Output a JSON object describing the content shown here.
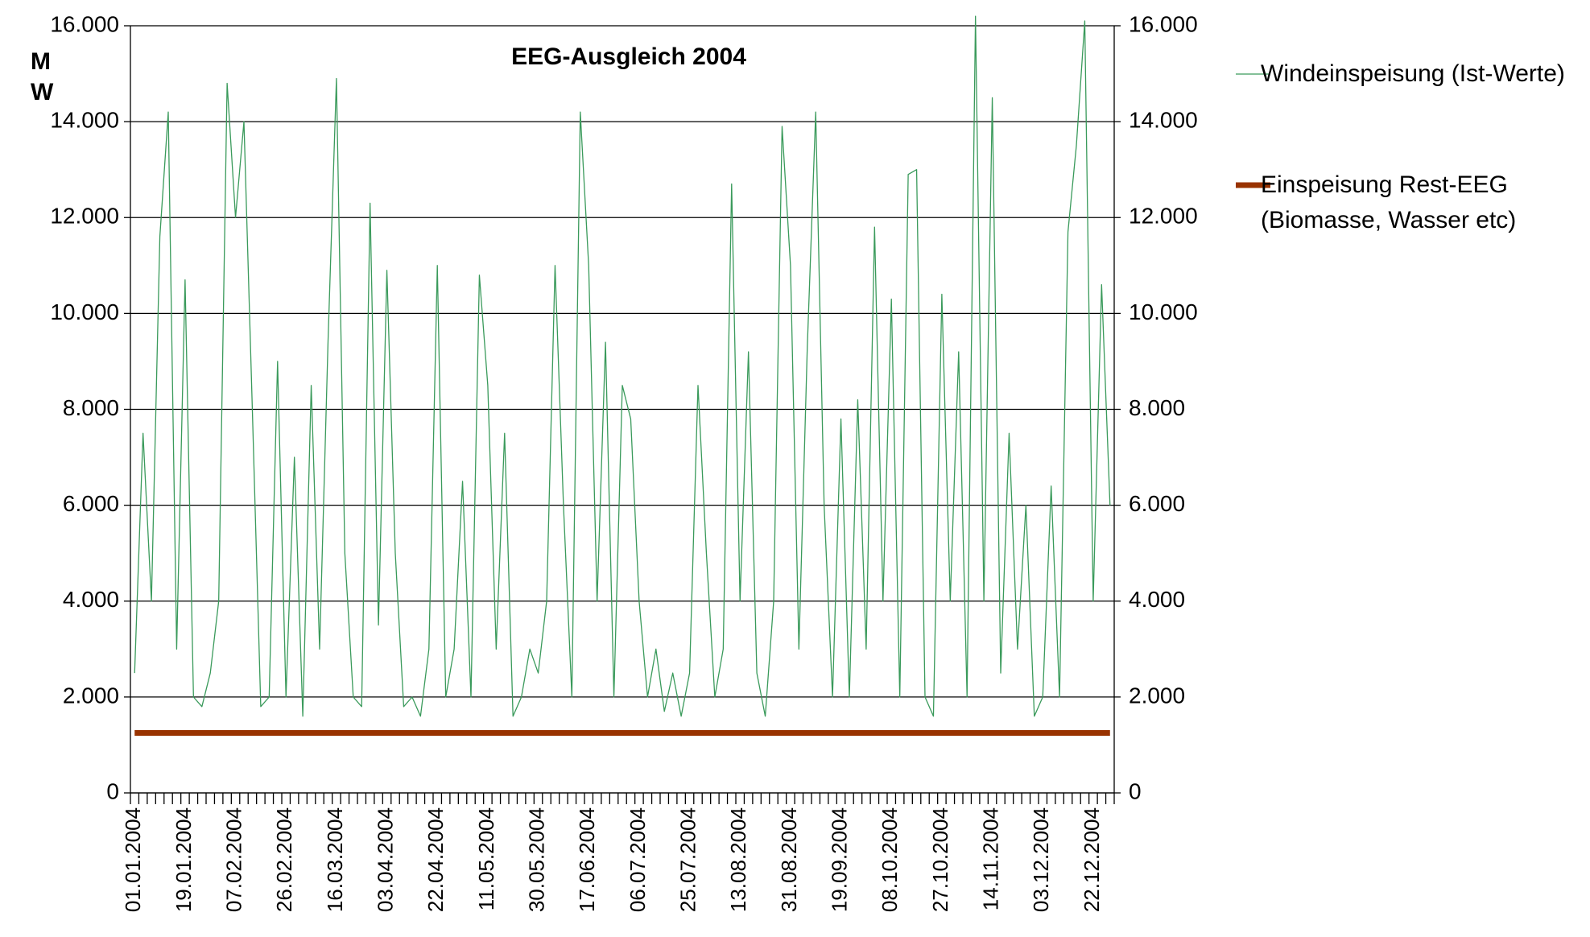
{
  "chart_data": {
    "type": "line",
    "title": "EEG-Ausgleich 2004",
    "ylabel": "MW",
    "categories": [
      "01.01.2004",
      null,
      null,
      null,
      null,
      null,
      "19.01.2004",
      null,
      null,
      null,
      null,
      null,
      "07.02.2004",
      null,
      null,
      null,
      null,
      null,
      "26.02.2004",
      null,
      null,
      null,
      null,
      null,
      "16.03.2004",
      null,
      null,
      null,
      null,
      null,
      "03.04.2004",
      null,
      null,
      null,
      null,
      null,
      "22.04.2004",
      null,
      null,
      null,
      null,
      null,
      "11.05.2004",
      null,
      null,
      null,
      null,
      null,
      "30.05.2004",
      null,
      null,
      null,
      null,
      null,
      "17.06.2004",
      null,
      null,
      null,
      null,
      null,
      "06.07.2004",
      null,
      null,
      null,
      null,
      null,
      "25.07.2004",
      null,
      null,
      null,
      null,
      null,
      "13.08.2004",
      null,
      null,
      null,
      null,
      null,
      "31.08.2004",
      null,
      null,
      null,
      null,
      null,
      "19.09.2004",
      null,
      null,
      null,
      null,
      null,
      "08.10.2004",
      null,
      null,
      null,
      null,
      null,
      "27.10.2004",
      null,
      null,
      null,
      null,
      null,
      "14.11.2004",
      null,
      null,
      null,
      null,
      null,
      "03.12.2004",
      null,
      null,
      null,
      null,
      null,
      "22.12.2004",
      null,
      null
    ],
    "series": [
      {
        "name": "Windeinspeisung (Ist-Werte)",
        "color": "#3a9a5b",
        "width": 1.3,
        "values": [
          2500,
          7500,
          4000,
          11600,
          14200,
          3000,
          10700,
          2000,
          1800,
          2500,
          4000,
          14800,
          12000,
          14000,
          8000,
          1800,
          2000,
          9000,
          2000,
          7000,
          1600,
          8500,
          3000,
          9400,
          14900,
          5000,
          2000,
          1800,
          12300,
          3500,
          10900,
          5000,
          1800,
          2000,
          1600,
          3000,
          11000,
          2000,
          3000,
          6500,
          2000,
          10800,
          8500,
          3000,
          7500,
          1600,
          2000,
          3000,
          2500,
          4000,
          11000,
          6000,
          2000,
          14200,
          11000,
          4000,
          9400,
          2000,
          8500,
          7800,
          4000,
          2000,
          3000,
          1700,
          2500,
          1600,
          2500,
          8500,
          5000,
          2000,
          3000,
          12700,
          4000,
          9200,
          2500,
          1600,
          4000,
          13900,
          11000,
          3000,
          9300,
          14200,
          6000,
          2000,
          7800,
          2000,
          8200,
          3000,
          11800,
          4000,
          10300,
          2000,
          12900,
          13000,
          2000,
          1600,
          10400,
          4000,
          9200,
          2000,
          16200,
          4000,
          14500,
          2500,
          7500,
          3000,
          6000,
          1600,
          2000,
          6400,
          2000,
          11700,
          13500,
          16100,
          4000,
          10600,
          6000
        ]
      },
      {
        "name": "Einspeisung Rest-EEG (Biomasse, Wasser etc)",
        "color": "#993300",
        "width": 7,
        "values": [
          1250,
          1250,
          1250,
          1250,
          1250,
          1250,
          1250,
          1250,
          1250,
          1250,
          1250,
          1250,
          1250,
          1250,
          1250,
          1250,
          1250,
          1250,
          1250,
          1250,
          1250,
          1250,
          1250,
          1250,
          1250,
          1250,
          1250,
          1250,
          1250,
          1250,
          1250,
          1250,
          1250,
          1250,
          1250,
          1250,
          1250,
          1250,
          1250,
          1250,
          1250,
          1250,
          1250,
          1250,
          1250,
          1250,
          1250,
          1250,
          1250,
          1250,
          1250,
          1250,
          1250,
          1250,
          1250,
          1250,
          1250,
          1250,
          1250,
          1250,
          1250,
          1250,
          1250,
          1250,
          1250,
          1250,
          1250,
          1250,
          1250,
          1250,
          1250,
          1250,
          1250,
          1250,
          1250,
          1250,
          1250,
          1250,
          1250,
          1250,
          1250,
          1250,
          1250,
          1250,
          1250,
          1250,
          1250,
          1250,
          1250,
          1250,
          1250,
          1250,
          1250,
          1250,
          1250,
          1250,
          1250,
          1250,
          1250,
          1250,
          1250,
          1250,
          1250,
          1250,
          1250,
          1250,
          1250,
          1250,
          1250,
          1250,
          1250,
          1250,
          1250,
          1250,
          1250,
          1250,
          1250
        ]
      }
    ],
    "ylim": [
      0,
      16000
    ],
    "yticks": [
      0,
      {
        "value": 2000,
        "label": "2.000"
      },
      {
        "value": 4000,
        "label": "4.000"
      },
      {
        "value": 6000,
        "label": "6.000"
      },
      {
        "value": 8000,
        "label": "8.000"
      },
      {
        "value": 10000,
        "label": "10.000"
      },
      {
        "value": 12000,
        "label": "12.000"
      },
      {
        "value": 14000,
        "label": "14.000"
      },
      {
        "value": 16000,
        "label": "16.000"
      }
    ],
    "y2lim": [
      0,
      16000
    ],
    "y2ticks": [
      0,
      {
        "value": 2000,
        "label": "2.000"
      },
      {
        "value": 4000,
        "label": "4.000"
      },
      {
        "value": 6000,
        "label": "6.000"
      },
      {
        "value": 8000,
        "label": "8.000"
      },
      {
        "value": 10000,
        "label": "10.000"
      },
      {
        "value": 12000,
        "label": "12.000"
      },
      {
        "value": 14000,
        "label": "14.000"
      },
      {
        "value": 16000,
        "label": "16.000"
      }
    ],
    "grid": true,
    "legend": "right"
  }
}
